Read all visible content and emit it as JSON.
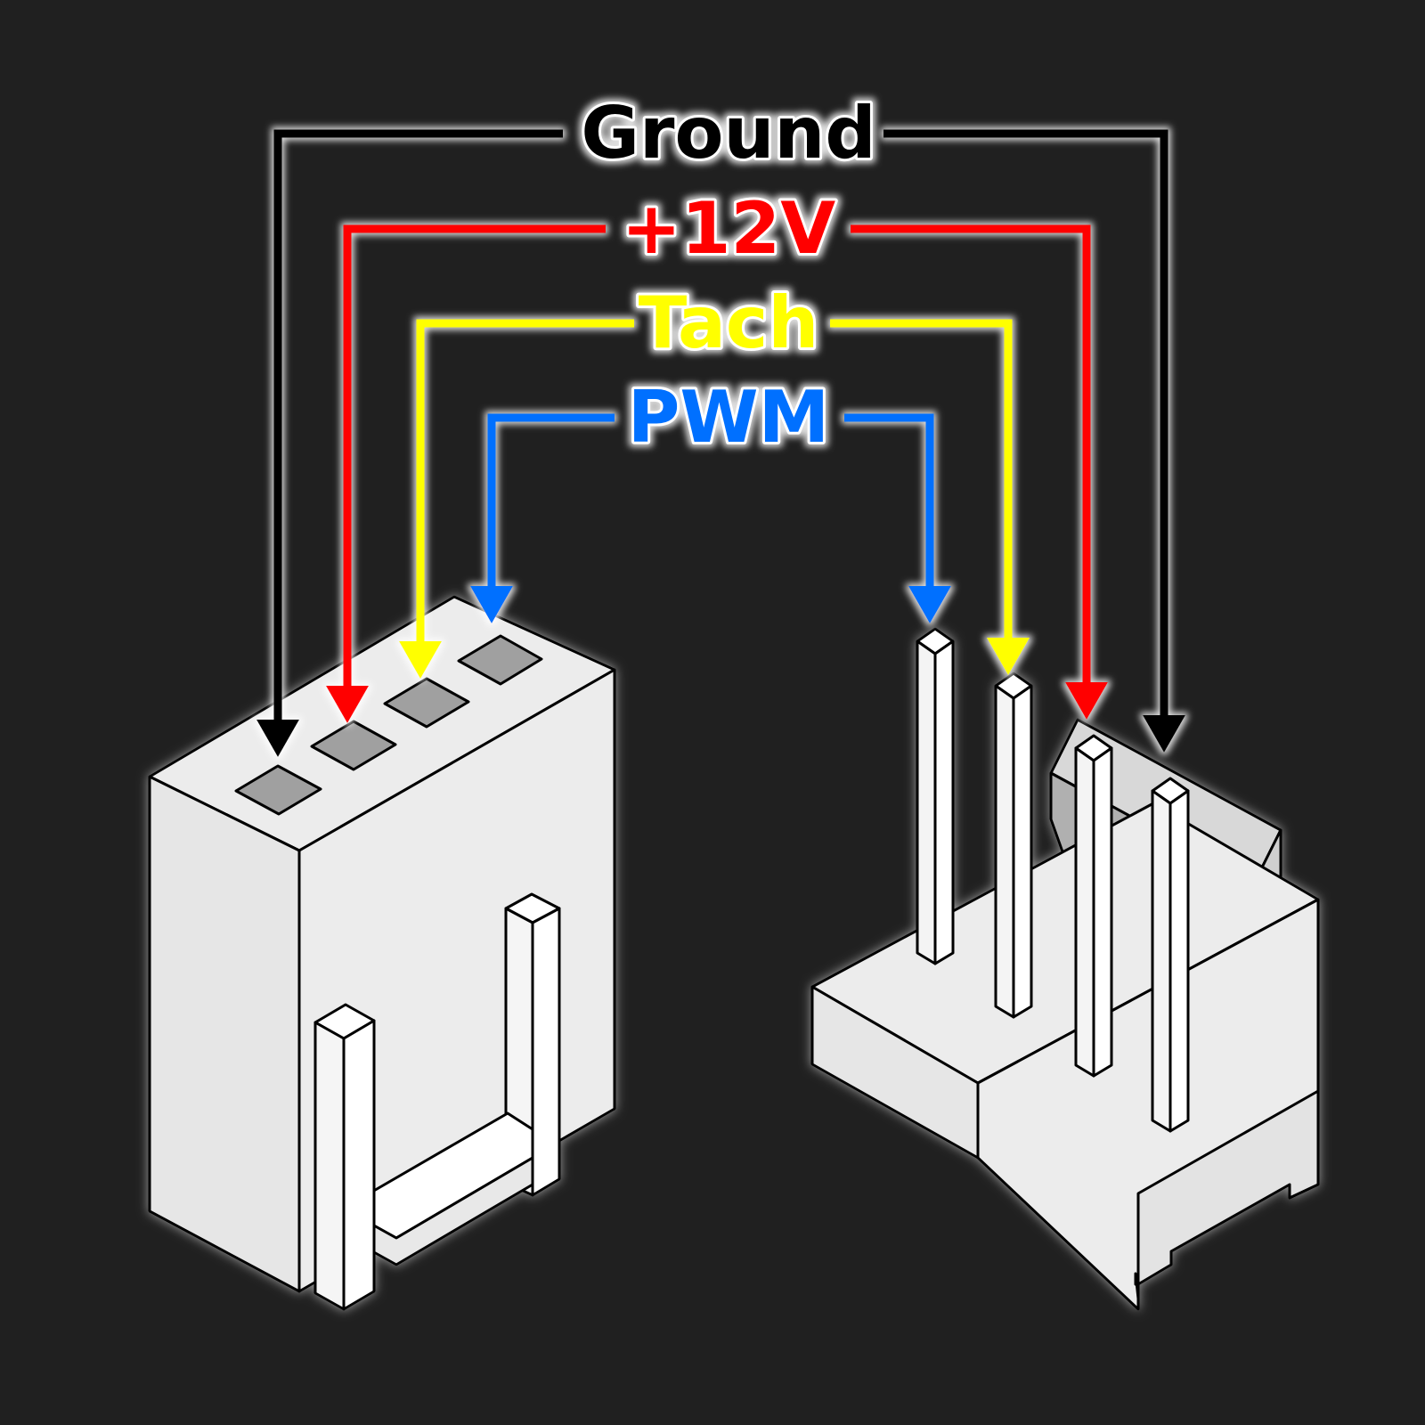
{
  "signals": [
    {
      "id": "ground",
      "label": "Ground",
      "color": "#000000"
    },
    {
      "id": "v12",
      "label": "+12V",
      "color": "#ff0000"
    },
    {
      "id": "tach",
      "label": "Tach",
      "color": "#ffff00"
    },
    {
      "id": "pwm",
      "label": "PWM",
      "color": "#0070ff"
    }
  ],
  "colors": {
    "background": "#202020",
    "connector_body": "#ececec",
    "pin_hole": "#a0a0a0",
    "outline": "#000000",
    "glow": "#ffffff"
  }
}
